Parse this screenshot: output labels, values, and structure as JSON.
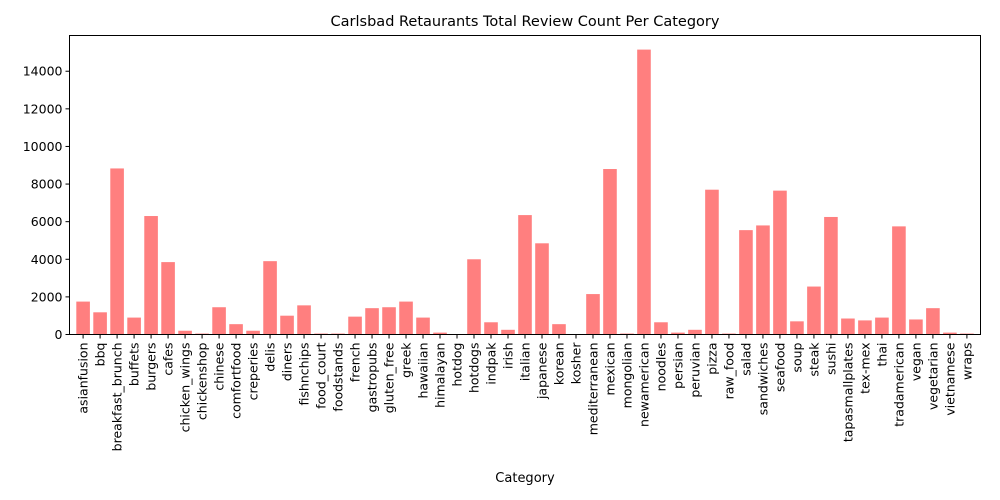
{
  "chart_data": {
    "type": "bar",
    "title": "Carlsbad Retaurants Total Review Count Per Category",
    "xlabel": "Category",
    "ylabel": "",
    "ylim": [
      0,
      15900
    ],
    "yticks": [
      0,
      2000,
      4000,
      6000,
      8000,
      10000,
      12000,
      14000
    ],
    "bar_color": "#ff7f7f",
    "categories": [
      "asianfusion",
      "bbq",
      "breakfast_brunch",
      "buffets",
      "burgers",
      "cafes",
      "chicken_wings",
      "chickenshop",
      "chinese",
      "comfortfood",
      "creperies",
      "delis",
      "diners",
      "fishnchips",
      "food_court",
      "foodstands",
      "french",
      "gastropubs",
      "gluten_free",
      "greek",
      "hawaiian",
      "himalayan",
      "hotdog",
      "hotdogs",
      "indpak",
      "irish",
      "italian",
      "japanese",
      "korean",
      "kosher",
      "mediterranean",
      "mexican",
      "mongolian",
      "newamerican",
      "noodles",
      "persian",
      "peruvian",
      "pizza",
      "raw_food",
      "salad",
      "sandwiches",
      "seafood",
      "soup",
      "steak",
      "sushi",
      "tapasmallplates",
      "tex-mex",
      "thai",
      "tradamerican",
      "vegan",
      "vegetarian",
      "vietnamese",
      "wraps"
    ],
    "values": [
      1750,
      1180,
      8830,
      900,
      6300,
      3850,
      200,
      50,
      1450,
      550,
      200,
      3900,
      1000,
      1550,
      50,
      50,
      950,
      1400,
      1450,
      1750,
      900,
      100,
      10,
      4000,
      650,
      250,
      6350,
      4850,
      550,
      10,
      2150,
      8800,
      50,
      15150,
      650,
      100,
      250,
      7700,
      50,
      5550,
      5800,
      7650,
      700,
      2550,
      6250,
      850,
      750,
      900,
      5750,
      800,
      1400,
      100,
      50
    ]
  }
}
